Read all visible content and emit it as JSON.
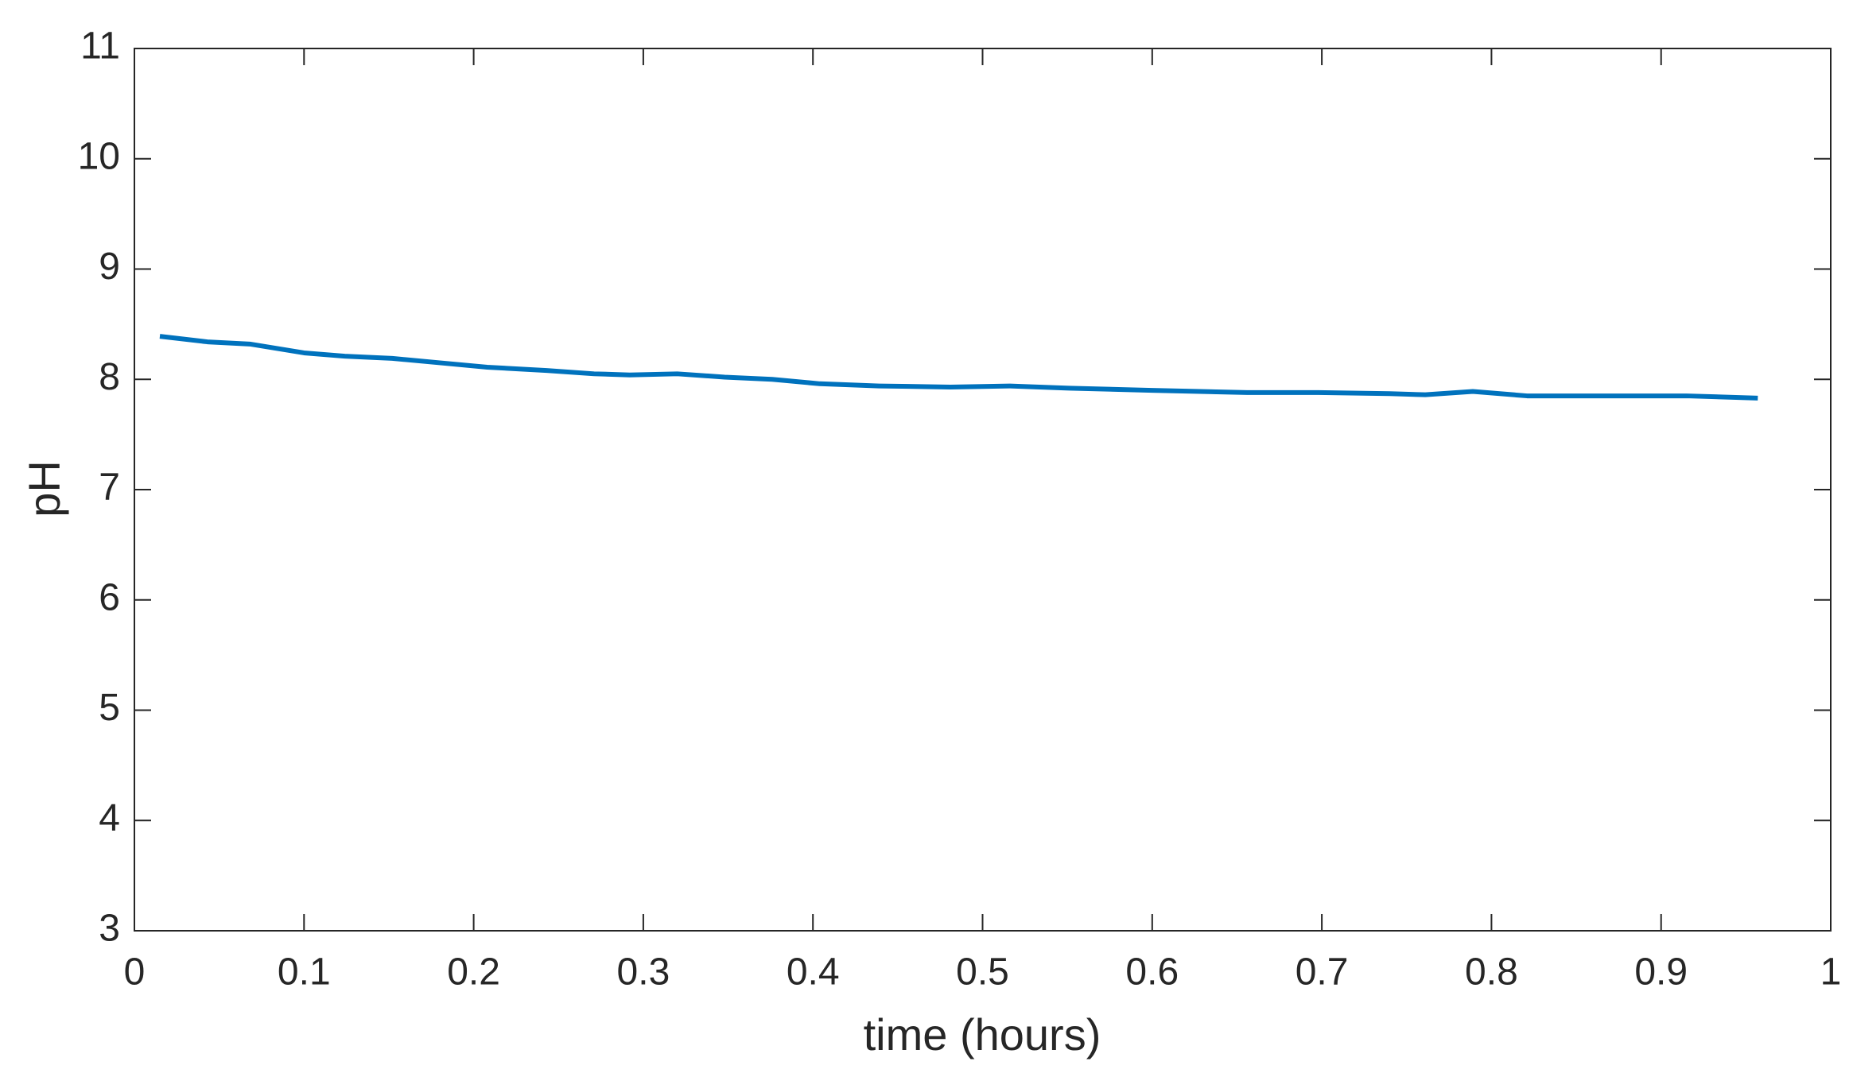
{
  "chart_data": {
    "type": "line",
    "x_label": "time (hours)",
    "y_label": "pH",
    "x": [
      0.015,
      0.043,
      0.068,
      0.1,
      0.124,
      0.152,
      0.18,
      0.208,
      0.243,
      0.271,
      0.292,
      0.32,
      0.348,
      0.376,
      0.404,
      0.439,
      0.481,
      0.516,
      0.551,
      0.6,
      0.656,
      0.698,
      0.74,
      0.761,
      0.789,
      0.821,
      0.866,
      0.915,
      0.957
    ],
    "series": [
      {
        "color": "#0072bd",
        "values": [
          8.39,
          8.34,
          8.32,
          8.24,
          8.21,
          8.19,
          8.15,
          8.11,
          8.08,
          8.05,
          8.04,
          8.05,
          8.02,
          8.0,
          7.96,
          7.94,
          7.93,
          7.94,
          7.92,
          7.9,
          7.88,
          7.88,
          7.87,
          7.86,
          7.89,
          7.85,
          7.85,
          7.85,
          7.83
        ]
      }
    ],
    "xlim": [
      0,
      1
    ],
    "xticks": [
      0,
      0.1,
      0.2,
      0.3,
      0.4,
      0.5,
      0.6,
      0.7,
      0.8,
      0.9,
      1
    ],
    "ylim": [
      3,
      11
    ],
    "yticks": [
      3,
      4,
      5,
      6,
      7,
      8,
      9,
      10,
      11
    ],
    "grid": false
  }
}
